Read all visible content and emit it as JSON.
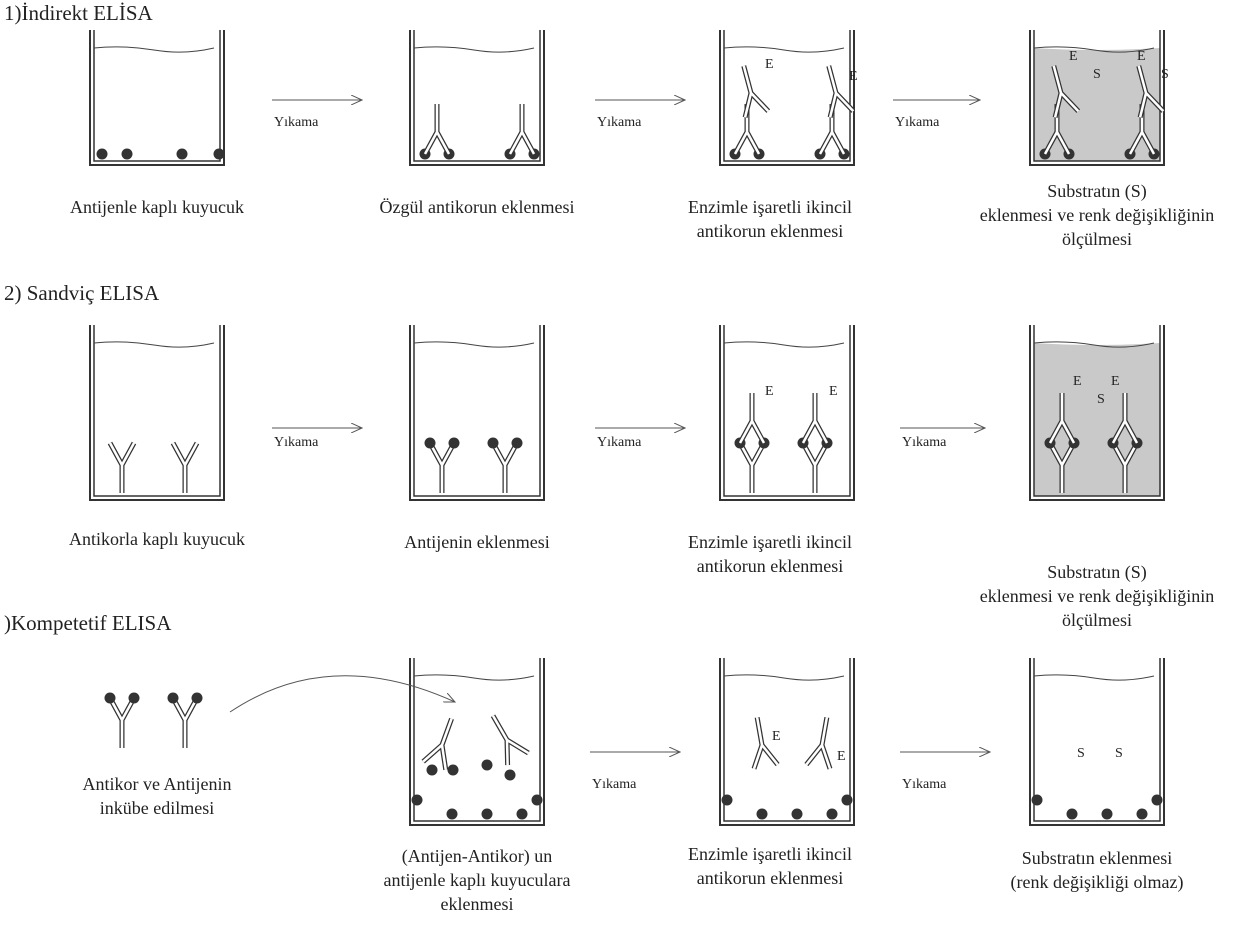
{
  "sections": [
    {
      "title": "1)İndirekt ELİSA",
      "steps": [
        {
          "caption": [
            "Antijenle kaplı kuyucuk"
          ]
        },
        {
          "caption": [
            "Özgül antikorun eklenmesi"
          ]
        },
        {
          "caption": [
            "Enzimle işaretli ikincil",
            "antikorun eklenmesi"
          ],
          "letters": [
            "E",
            "E"
          ]
        },
        {
          "caption": [
            "Substratın (S)",
            "eklenmesi ve renk değişikliğinin",
            "ölçülmesi"
          ],
          "letters": [
            "E",
            "S",
            "E",
            "S"
          ]
        }
      ],
      "arrows": [
        "Yıkama",
        "Yıkama",
        "Yıkama"
      ]
    },
    {
      "title": "2) Sandviç ELISA",
      "steps": [
        {
          "caption": [
            "Antikorla kaplı kuyucuk"
          ]
        },
        {
          "caption": [
            "Antijenin eklenmesi"
          ]
        },
        {
          "caption": [
            "Enzimle işaretli ikincil",
            "antikorun eklenmesi"
          ],
          "letters": [
            "E",
            "E"
          ]
        },
        {
          "caption": [
            "Substratın (S)",
            "eklenmesi ve renk değişikliğinin",
            "ölçülmesi"
          ],
          "letters": [
            "E",
            "S",
            "E"
          ]
        }
      ],
      "arrows": [
        "Yıkama",
        "Yıkama",
        "Yıkama"
      ]
    },
    {
      "title": ")Kompetetif ELISA",
      "steps": [
        {
          "caption": [
            "Antikor ve Antijenin",
            "inkübe edilmesi"
          ]
        },
        {
          "caption": [
            "(Antijen-Antikor) un",
            "antijenle kaplı kuyuculara",
            "eklenmesi"
          ]
        },
        {
          "caption": [
            "Enzimle işaretli ikincil",
            "antikorun eklenmesi"
          ],
          "letters": [
            "E",
            "E"
          ]
        },
        {
          "caption": [
            "Substratın eklenmesi",
            "(renk değişikliği olmaz)"
          ],
          "letters": [
            "S",
            "S"
          ]
        }
      ],
      "arrows": [
        "Yıkama",
        "Yıkama"
      ]
    }
  ]
}
